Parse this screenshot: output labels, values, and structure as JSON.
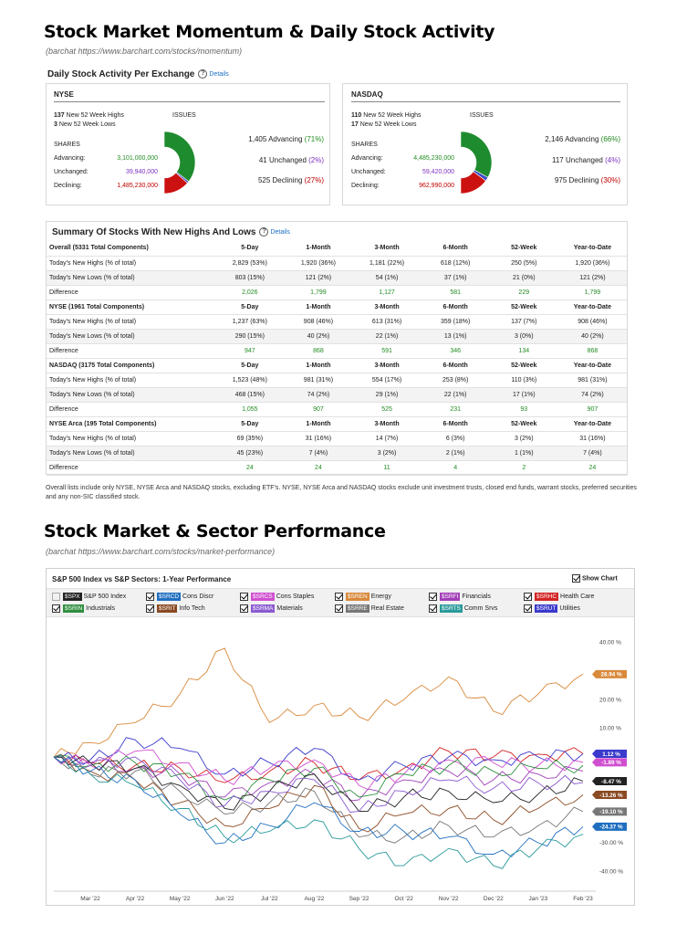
{
  "page": {
    "title1": "Stock Market Momentum & Daily Stock Activity",
    "source1": "(barchat https://www.barchart.com/stocks/momentum)",
    "title2": "Stock Market & Sector Performance",
    "source2": "(barchat https://www.barchart.com/stocks/market-performance)"
  },
  "activity": {
    "title": "Daily Stock Activity Per Exchange",
    "details": "Details",
    "exchanges": [
      {
        "name": "NYSE",
        "highs_num": "137",
        "highs_text": " New 52 Week Highs",
        "lows_num": "3",
        "lows_text": " New 52 Week Lows",
        "issues_label": "ISSUES",
        "shares_label": "SHARES",
        "adv_label": "Advancing:",
        "adv_value": "3,101,000,000",
        "unch_label": "Unchanged:",
        "unch_value": "39,940,000",
        "dec_label": "Declining:",
        "dec_value": "1,485,230,000",
        "issues_adv": "1,405 Advancing ",
        "issues_adv_pct": "(71%)",
        "issues_unch": "41 Unchanged ",
        "issues_unch_pct": "(2%)",
        "issues_dec": "525 Declining ",
        "issues_dec_pct": "(27%)",
        "pie": {
          "advancing": 71,
          "unchanged": 2,
          "declining": 27
        }
      },
      {
        "name": "NASDAQ",
        "highs_num": "110",
        "highs_text": " New 52 Week Highs",
        "lows_num": "17",
        "lows_text": " New 52 Week Lows",
        "issues_label": "ISSUES",
        "shares_label": "SHARES",
        "adv_label": "Advancing:",
        "adv_value": "4,485,230,000",
        "unch_label": "Unchanged:",
        "unch_value": "59,420,000",
        "dec_label": "Declining:",
        "dec_value": "962,990,000",
        "issues_adv": "2,146 Advancing ",
        "issues_adv_pct": "(66%)",
        "issues_unch": "117 Unchanged ",
        "issues_unch_pct": "(4%)",
        "issues_dec": "975 Declining ",
        "issues_dec_pct": "(30%)",
        "pie": {
          "advancing": 66,
          "unchanged": 4,
          "declining": 30
        }
      }
    ],
    "colors": {
      "advancing": "#1e8b2e",
      "unchanged": "#3a4ac8",
      "declining": "#cc1111"
    }
  },
  "summary": {
    "title": "Summary Of Stocks With New Highs And Lows",
    "details": "Details",
    "groups": [
      {
        "header": [
          "Overall (5331 Total Components)",
          "5-Day",
          "1-Month",
          "3-Month",
          "6-Month",
          "52-Week",
          "Year-to-Date"
        ],
        "rows": [
          [
            "Today's New Highs (% of total)",
            "2,829 (53%)",
            "1,920 (36%)",
            "1,181 (22%)",
            "618 (12%)",
            "250 (5%)",
            "1,920 (36%)"
          ],
          [
            "Today's New Lows (% of total)",
            "803 (15%)",
            "121 (2%)",
            "54 (1%)",
            "37 (1%)",
            "21 (0%)",
            "121 (2%)"
          ],
          [
            "Difference",
            "2,026",
            "1,799",
            "1,127",
            "581",
            "229",
            "1,799"
          ]
        ]
      },
      {
        "header": [
          "NYSE (1961 Total Components)",
          "5-Day",
          "1-Month",
          "3-Month",
          "6-Month",
          "52-Week",
          "Year-to-Date"
        ],
        "rows": [
          [
            "Today's New Highs (% of total)",
            "1,237 (63%)",
            "908 (46%)",
            "613 (31%)",
            "359 (18%)",
            "137 (7%)",
            "908 (46%)"
          ],
          [
            "Today's New Lows (% of total)",
            "290 (15%)",
            "40 (2%)",
            "22 (1%)",
            "13 (1%)",
            "3 (0%)",
            "40 (2%)"
          ],
          [
            "Difference",
            "947",
            "868",
            "591",
            "346",
            "134",
            "868"
          ]
        ]
      },
      {
        "header": [
          "NASDAQ (3175 Total Components)",
          "5-Day",
          "1-Month",
          "3-Month",
          "6-Month",
          "52-Week",
          "Year-to-Date"
        ],
        "rows": [
          [
            "Today's New Highs (% of total)",
            "1,523 (48%)",
            "981 (31%)",
            "554 (17%)",
            "253 (8%)",
            "110 (3%)",
            "981 (31%)"
          ],
          [
            "Today's New Lows (% of total)",
            "468 (15%)",
            "74 (2%)",
            "29 (1%)",
            "22 (1%)",
            "17 (1%)",
            "74 (2%)"
          ],
          [
            "Difference",
            "1,055",
            "907",
            "525",
            "231",
            "93",
            "907"
          ]
        ]
      },
      {
        "header": [
          "NYSE Arca (195 Total Components)",
          "5-Day",
          "1-Month",
          "3-Month",
          "6-Month",
          "52-Week",
          "Year-to-Date"
        ],
        "rows": [
          [
            "Today's New Highs (% of total)",
            "69 (35%)",
            "31 (16%)",
            "14 (7%)",
            "6 (3%)",
            "3 (2%)",
            "31 (16%)"
          ],
          [
            "Today's New Lows (% of total)",
            "45 (23%)",
            "7 (4%)",
            "3 (2%)",
            "2 (1%)",
            "1 (1%)",
            "7 (4%)"
          ],
          [
            "Difference",
            "24",
            "24",
            "11",
            "4",
            "2",
            "24"
          ]
        ]
      }
    ],
    "note": "Overall lists include only NYSE, NYSE Arca and NASDAQ stocks, excluding ETF's. NYSE, NYSE Arca and NASDAQ stocks exclude unit investment trusts, closed end funds, warrant stocks, preferred securities and any non-SIC classified stock."
  },
  "performance": {
    "show_chart_label": "Show Chart",
    "legend": [
      {
        "ticker": "$SPX",
        "name": "S&P 500 Index",
        "color": "#222222",
        "checked": false
      },
      {
        "ticker": "$SRCD",
        "name": "Cons Discr",
        "color": "#1f6fc0",
        "checked": true
      },
      {
        "ticker": "$SRCS",
        "name": "Cons Staples",
        "color": "#d04fd0",
        "checked": true
      },
      {
        "ticker": "$SREN",
        "name": "Energy",
        "color": "#d8893a",
        "checked": true
      },
      {
        "ticker": "$SRFI",
        "name": "Financials",
        "color": "#a23fb8",
        "checked": true
      },
      {
        "ticker": "$SRHC",
        "name": "Health Care",
        "color": "#d32424",
        "checked": true
      },
      {
        "ticker": "$SRIN",
        "name": "Industrials",
        "color": "#2f8f3f",
        "checked": true
      },
      {
        "ticker": "$SRIT",
        "name": "Info Tech",
        "color": "#8a4a22",
        "checked": true
      },
      {
        "ticker": "$SRMA",
        "name": "Materials",
        "color": "#8a5ad0",
        "checked": true
      },
      {
        "ticker": "$SRRE",
        "name": "Real Estate",
        "color": "#777777",
        "checked": true
      },
      {
        "ticker": "$SRTS",
        "name": "Comm Srvs",
        "color": "#2a9a9a",
        "checked": true
      },
      {
        "ticker": "$SRUT",
        "name": "Utilities",
        "color": "#3a3acc",
        "checked": true
      }
    ]
  },
  "chart_data": {
    "type": "line",
    "title": "S&P 500 Index vs S&P Sectors: 1-Year Performance",
    "x": [
      "Mar '22",
      "Apr '22",
      "May '22",
      "Jun '22",
      "Jul '22",
      "Aug '22",
      "Sep '22",
      "Oct '22",
      "Nov '22",
      "Dec '22",
      "Jan '23",
      "Feb '23"
    ],
    "ylim": [
      -45,
      45
    ],
    "yticks": [
      "40.00 %",
      "20.00 %",
      "10.00 %",
      "-30.00 %",
      "-40.00 %"
    ],
    "ytick_values": [
      40,
      20,
      10,
      -30,
      -40
    ],
    "grid": false,
    "series": [
      {
        "name": "Energy",
        "color": "#d8893a",
        "values": [
          5,
          12,
          22,
          38,
          12,
          18,
          14,
          20,
          28,
          16,
          22,
          28.94
        ],
        "end_label": "28.94 %"
      },
      {
        "name": "Health Care",
        "color": "#d32424",
        "values": [
          -2,
          -3,
          -4,
          -9,
          -5,
          -2,
          -8,
          -4,
          2,
          0,
          1,
          1.12
        ],
        "end_label": ""
      },
      {
        "name": "Utilities",
        "color": "#3a3acc",
        "values": [
          -1,
          6,
          3,
          -6,
          -2,
          3,
          -8,
          -3,
          0,
          -1,
          0,
          1.12
        ],
        "end_label": "1.12 %"
      },
      {
        "name": "Cons Staples",
        "color": "#d04fd0",
        "values": [
          -3,
          2,
          -2,
          -8,
          -4,
          -1,
          -10,
          -6,
          -1,
          -2,
          -3,
          -1.89
        ],
        "end_label": "-1.89 %"
      },
      {
        "name": "Financials",
        "color": "#a23fb8",
        "values": [
          -2,
          -4,
          -6,
          -14,
          -9,
          -6,
          -15,
          -8,
          -5,
          -8,
          -6,
          -5
        ],
        "end_label": ""
      },
      {
        "name": "Industrials",
        "color": "#2f8f3f",
        "values": [
          -3,
          -2,
          -6,
          -15,
          -8,
          -4,
          -14,
          -6,
          -3,
          -5,
          -4,
          -3
        ],
        "end_label": ""
      },
      {
        "name": "S&P 500 Index",
        "color": "#222222",
        "values": [
          -2,
          -4,
          -10,
          -18,
          -12,
          -6,
          -19,
          -14,
          -12,
          -16,
          -13,
          -8.47
        ],
        "end_label": "-8.47 %"
      },
      {
        "name": "Materials",
        "color": "#8a5ad0",
        "values": [
          -3,
          0,
          -8,
          -17,
          -12,
          -8,
          -19,
          -12,
          -8,
          -11,
          -9,
          -9
        ],
        "end_label": ""
      },
      {
        "name": "Info Tech",
        "color": "#8a4a22",
        "values": [
          -5,
          -8,
          -16,
          -24,
          -18,
          -10,
          -25,
          -20,
          -18,
          -22,
          -18,
          -13.26
        ],
        "end_label": "-13.26 %"
      },
      {
        "name": "Real Estate",
        "color": "#777777",
        "values": [
          -6,
          -5,
          -12,
          -20,
          -16,
          -12,
          -28,
          -28,
          -24,
          -28,
          -24,
          -19.1
        ],
        "end_label": "-19.10 %"
      },
      {
        "name": "Cons Discr",
        "color": "#1f6fc0",
        "values": [
          -5,
          -8,
          -20,
          -30,
          -24,
          -16,
          -26,
          -26,
          -28,
          -34,
          -30,
          -24.37
        ],
        "end_label": "-24.37 %"
      },
      {
        "name": "Comm Srvs",
        "color": "#2a9a9a",
        "values": [
          -6,
          -10,
          -18,
          -28,
          -26,
          -22,
          -32,
          -38,
          -32,
          -38,
          -32,
          -27
        ],
        "end_label": ""
      }
    ]
  }
}
